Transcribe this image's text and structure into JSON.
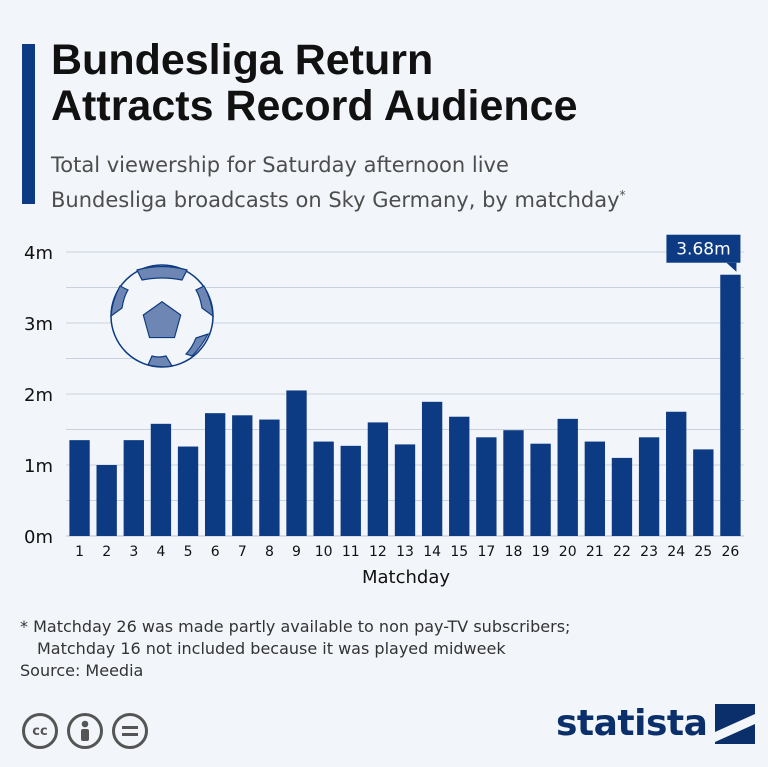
{
  "header": {
    "title_line1": "Bundesliga Return",
    "title_line2": "Attracts Record Audience",
    "subtitle_line1": "Total viewership for Saturday afternoon live",
    "subtitle_line2": "Bundesliga broadcasts on Sky Germany, by matchday",
    "subtitle_marker": "*"
  },
  "chart_data": {
    "type": "bar",
    "xlabel": "Matchday",
    "ylabel": "",
    "ylim": [
      0,
      4
    ],
    "yticks": [
      "0m",
      "1m",
      "2m",
      "3m",
      "4m"
    ],
    "grid": true,
    "categories": [
      "1",
      "2",
      "3",
      "4",
      "5",
      "6",
      "7",
      "8",
      "9",
      "10",
      "11",
      "12",
      "13",
      "14",
      "15",
      "17",
      "18",
      "19",
      "20",
      "21",
      "22",
      "23",
      "24",
      "25",
      "26"
    ],
    "values": [
      1.35,
      1.0,
      1.35,
      1.58,
      1.26,
      1.73,
      1.7,
      1.64,
      2.05,
      1.33,
      1.27,
      1.6,
      1.29,
      1.89,
      1.68,
      1.39,
      1.49,
      1.3,
      1.65,
      1.33,
      1.1,
      1.39,
      1.75,
      1.22,
      3.68
    ],
    "highlight_label": "3.68m",
    "bar_color": "#0c3a83"
  },
  "notes": {
    "line1": "* Matchday 26 was made partly available to non pay-TV subscribers;",
    "line2": "Matchday 16 not included because it was played midweek",
    "source": "Source: Meedia"
  },
  "license_icons": [
    "cc-icon",
    "person-icon",
    "equals-icon"
  ],
  "brand": {
    "name": "statista"
  }
}
